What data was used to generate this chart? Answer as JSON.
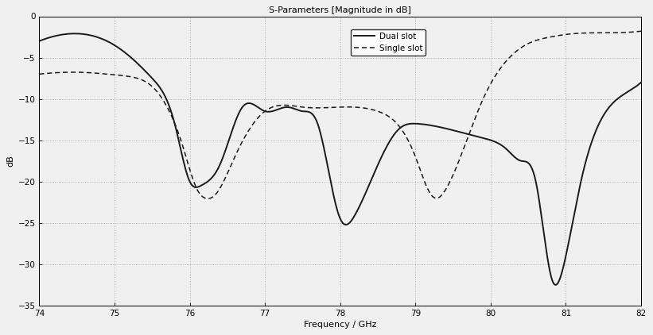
{
  "title": "S-Parameters [Magnitude in dB]",
  "xlabel": "Frequency / GHz",
  "ylabel": "dB",
  "xlim": [
    74,
    82
  ],
  "ylim": [
    -35,
    0
  ],
  "xticks": [
    74,
    75,
    76,
    77,
    78,
    79,
    80,
    81,
    82
  ],
  "yticks": [
    0,
    -5,
    -10,
    -15,
    -20,
    -25,
    -30,
    -35
  ],
  "legend_labels": [
    "Dual slot",
    "Single slot"
  ],
  "line_color": "#1a1a1a",
  "background_color": "#f0f0f0",
  "plot_bg_color": "#f0f0f0",
  "grid_color": "#aaaaaa",
  "title_fontsize": 8,
  "label_fontsize": 8,
  "tick_fontsize": 7.5,
  "legend_fontsize": 7.5,
  "dual_lw": 1.4,
  "single_lw": 1.1,
  "dual_slot_key": [
    [
      74.0,
      -3.0
    ],
    [
      74.5,
      -2.1
    ],
    [
      75.0,
      -3.5
    ],
    [
      75.5,
      -7.5
    ],
    [
      75.8,
      -13.0
    ],
    [
      76.0,
      -20.0
    ],
    [
      76.15,
      -20.5
    ],
    [
      76.4,
      -18.0
    ],
    [
      76.7,
      -11.0
    ],
    [
      77.0,
      -11.5
    ],
    [
      77.3,
      -11.0
    ],
    [
      77.5,
      -11.5
    ],
    [
      77.7,
      -13.0
    ],
    [
      78.0,
      -24.5
    ],
    [
      78.2,
      -24.0
    ],
    [
      78.5,
      -18.0
    ],
    [
      78.8,
      -13.5
    ],
    [
      79.0,
      -13.0
    ],
    [
      79.2,
      -13.2
    ],
    [
      79.5,
      -13.8
    ],
    [
      79.8,
      -14.5
    ],
    [
      80.0,
      -15.0
    ],
    [
      80.2,
      -16.0
    ],
    [
      80.4,
      -17.5
    ],
    [
      80.6,
      -20.0
    ],
    [
      80.82,
      -32.0
    ],
    [
      81.0,
      -29.0
    ],
    [
      81.2,
      -20.0
    ],
    [
      81.5,
      -12.0
    ],
    [
      82.0,
      -8.0
    ]
  ],
  "single_slot_key": [
    [
      74.0,
      -7.0
    ],
    [
      74.3,
      -6.8
    ],
    [
      74.6,
      -6.8
    ],
    [
      74.9,
      -7.0
    ],
    [
      75.2,
      -7.3
    ],
    [
      75.5,
      -8.5
    ],
    [
      75.7,
      -11.0
    ],
    [
      75.9,
      -15.5
    ],
    [
      76.1,
      -21.0
    ],
    [
      76.2,
      -22.0
    ],
    [
      76.35,
      -21.5
    ],
    [
      76.6,
      -17.0
    ],
    [
      77.0,
      -11.5
    ],
    [
      77.5,
      -11.0
    ],
    [
      78.0,
      -11.0
    ],
    [
      78.5,
      -11.5
    ],
    [
      78.8,
      -13.5
    ],
    [
      79.0,
      -17.0
    ],
    [
      79.2,
      -21.5
    ],
    [
      79.3,
      -22.0
    ],
    [
      79.4,
      -21.0
    ],
    [
      79.6,
      -17.0
    ],
    [
      79.9,
      -10.0
    ],
    [
      80.2,
      -5.5
    ],
    [
      80.5,
      -3.3
    ],
    [
      80.8,
      -2.5
    ],
    [
      81.0,
      -2.2
    ],
    [
      81.5,
      -2.0
    ],
    [
      82.0,
      -1.8
    ]
  ]
}
